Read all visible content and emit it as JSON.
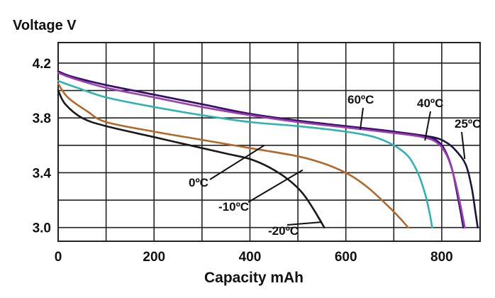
{
  "chart_data": {
    "type": "line",
    "title": "",
    "ylabel": "Voltage V",
    "xlabel": "Capacity mAh",
    "xlim": [
      0,
      880
    ],
    "ylim": [
      2.9,
      4.35
    ],
    "x_ticks": [
      0,
      200,
      400,
      600,
      800
    ],
    "x_tick_labels": [
      "0",
      "200",
      "400",
      "600",
      "800"
    ],
    "y_ticks": [
      3.0,
      3.4,
      3.8,
      4.2
    ],
    "y_tick_labels": [
      "3.0",
      "3.4",
      "3.8",
      "4.2"
    ],
    "x_grid": [
      0,
      100,
      200,
      300,
      400,
      500,
      600,
      700,
      800,
      880
    ],
    "y_grid": [
      3.0,
      3.2,
      3.4,
      3.6,
      3.8,
      4.0,
      4.2
    ],
    "grid": true,
    "series": [
      {
        "name": "25ºC",
        "color": "#1a1440",
        "points": [
          [
            0,
            4.14
          ],
          [
            30,
            4.1
          ],
          [
            100,
            4.04
          ],
          [
            200,
            3.97
          ],
          [
            300,
            3.9
          ],
          [
            400,
            3.83
          ],
          [
            500,
            3.78
          ],
          [
            600,
            3.74
          ],
          [
            700,
            3.7
          ],
          [
            780,
            3.66
          ],
          [
            810,
            3.62
          ],
          [
            830,
            3.56
          ],
          [
            850,
            3.46
          ],
          [
            862,
            3.3
          ],
          [
            870,
            3.12
          ],
          [
            875,
            3.0
          ]
        ]
      },
      {
        "name": "40ºC",
        "color": "#3a1068",
        "points": [
          [
            0,
            4.14
          ],
          [
            30,
            4.1
          ],
          [
            100,
            4.04
          ],
          [
            200,
            3.97
          ],
          [
            300,
            3.9
          ],
          [
            400,
            3.83
          ],
          [
            500,
            3.78
          ],
          [
            600,
            3.74
          ],
          [
            700,
            3.7
          ],
          [
            770,
            3.66
          ],
          [
            795,
            3.62
          ],
          [
            810,
            3.54
          ],
          [
            822,
            3.42
          ],
          [
            832,
            3.25
          ],
          [
            840,
            3.1
          ],
          [
            845,
            3.0
          ]
        ]
      },
      {
        "name": "60ºC",
        "color": "#9a3fb0",
        "points": [
          [
            0,
            4.13
          ],
          [
            30,
            4.09
          ],
          [
            100,
            4.02
          ],
          [
            200,
            3.95
          ],
          [
            300,
            3.88
          ],
          [
            400,
            3.82
          ],
          [
            500,
            3.77
          ],
          [
            600,
            3.73
          ],
          [
            700,
            3.69
          ],
          [
            760,
            3.66
          ],
          [
            790,
            3.62
          ],
          [
            810,
            3.53
          ],
          [
            825,
            3.38
          ],
          [
            838,
            3.18
          ],
          [
            848,
            3.0
          ]
        ]
      },
      {
        "name": "0ºC",
        "color": "#30b2b2",
        "points": [
          [
            0,
            4.07
          ],
          [
            40,
            4.02
          ],
          [
            100,
            3.95
          ],
          [
            200,
            3.88
          ],
          [
            300,
            3.82
          ],
          [
            400,
            3.77
          ],
          [
            500,
            3.74
          ],
          [
            600,
            3.7
          ],
          [
            660,
            3.66
          ],
          [
            700,
            3.6
          ],
          [
            730,
            3.52
          ],
          [
            750,
            3.4
          ],
          [
            765,
            3.25
          ],
          [
            775,
            3.1
          ],
          [
            780,
            3.0
          ]
        ]
      },
      {
        "name": "-10ºC",
        "color": "#b06a2a",
        "points": [
          [
            0,
            4.05
          ],
          [
            20,
            3.95
          ],
          [
            60,
            3.85
          ],
          [
            100,
            3.77
          ],
          [
            200,
            3.7
          ],
          [
            300,
            3.64
          ],
          [
            400,
            3.58
          ],
          [
            500,
            3.52
          ],
          [
            560,
            3.46
          ],
          [
            610,
            3.38
          ],
          [
            650,
            3.28
          ],
          [
            690,
            3.15
          ],
          [
            715,
            3.06
          ],
          [
            730,
            3.0
          ]
        ]
      },
      {
        "name": "-20ºC",
        "color": "#1a1a1a",
        "points": [
          [
            0,
            4.0
          ],
          [
            15,
            3.9
          ],
          [
            50,
            3.8
          ],
          [
            100,
            3.74
          ],
          [
            200,
            3.66
          ],
          [
            300,
            3.58
          ],
          [
            350,
            3.54
          ],
          [
            400,
            3.5
          ],
          [
            440,
            3.44
          ],
          [
            480,
            3.35
          ],
          [
            510,
            3.25
          ],
          [
            535,
            3.12
          ],
          [
            555,
            3.0
          ]
        ]
      }
    ],
    "annotations": [
      {
        "text": "60ºC",
        "anchor": [
          630,
          3.715
        ]
      },
      {
        "text": "40ºC",
        "anchor": [
          765,
          3.635
        ]
      },
      {
        "text": "25ºC",
        "anchor": [
          848,
          3.5
        ]
      },
      {
        "text": "0ºC",
        "anchor": [
          430,
          3.6
        ]
      },
      {
        "text": "-10ºC",
        "anchor": [
          510,
          3.42
        ]
      },
      {
        "text": "-20ºC",
        "anchor": [
          550,
          3.04
        ]
      }
    ]
  }
}
